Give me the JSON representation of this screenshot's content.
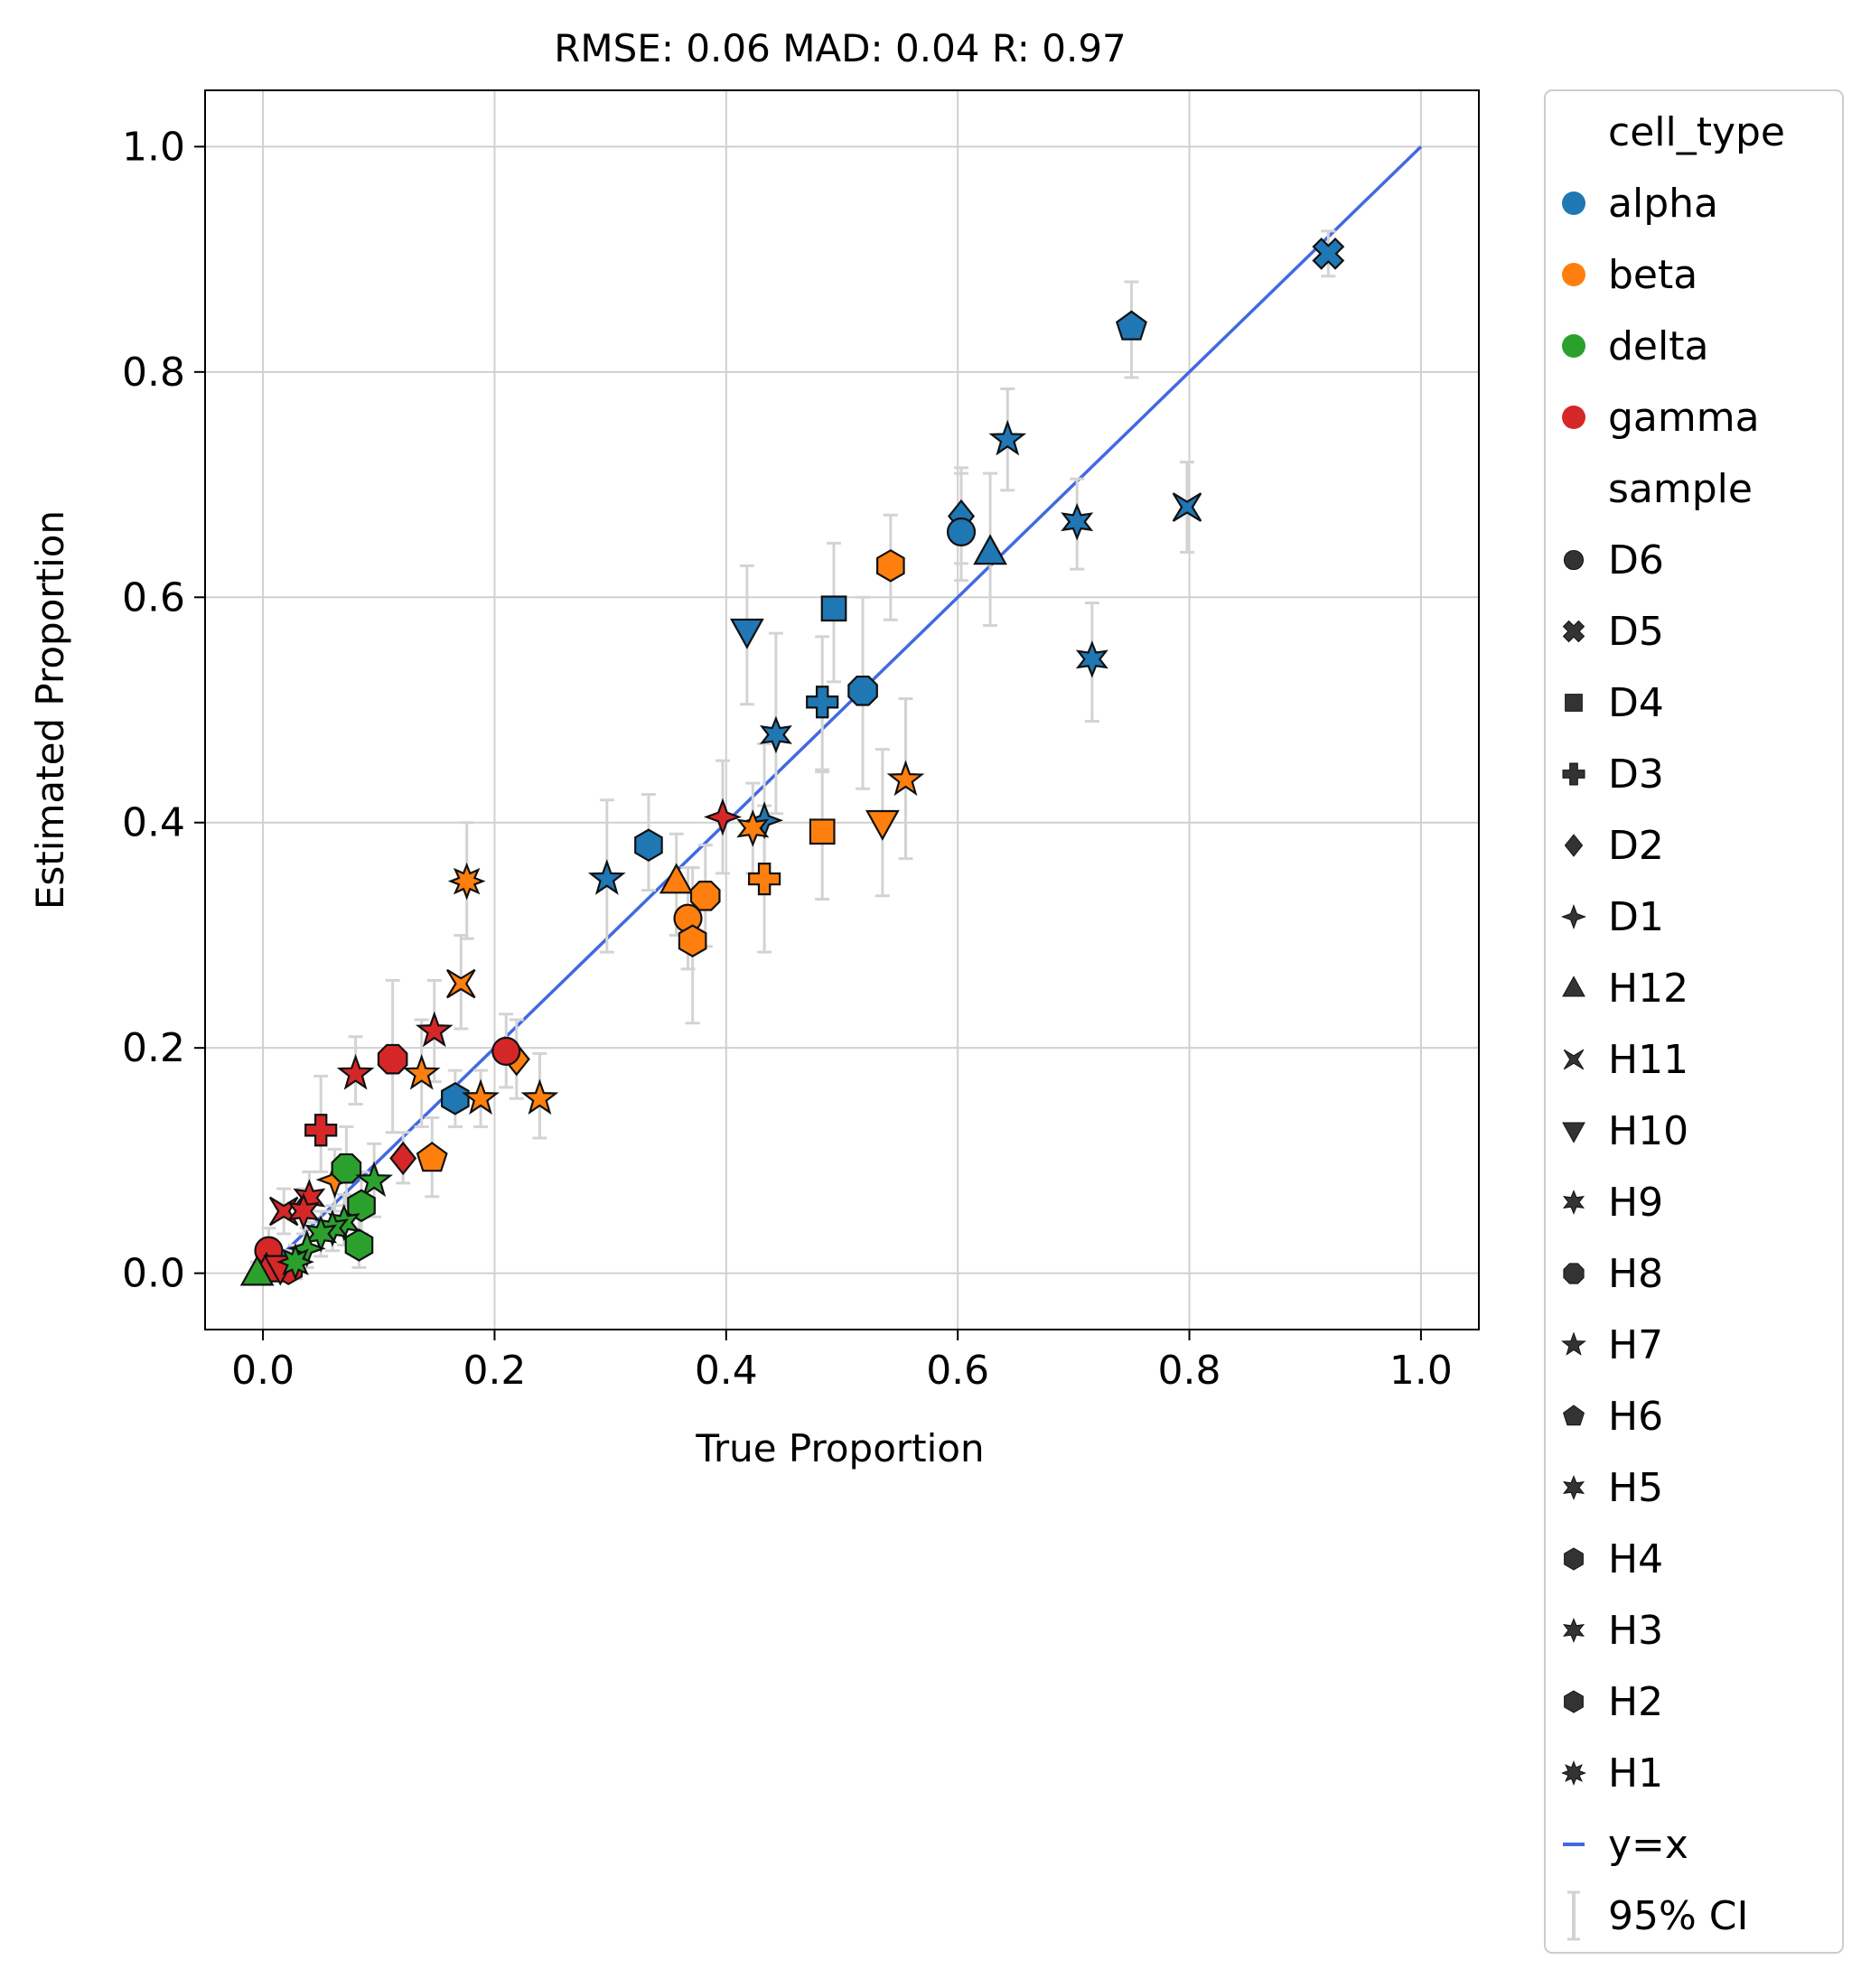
{
  "chart_data": {
    "type": "scatter",
    "title": "RMSE: 0.06 MAD: 0.04 R: 0.97",
    "xlabel": "True Proportion",
    "ylabel": "Estimated Proportion",
    "xlim": [
      -0.05,
      1.05
    ],
    "ylim": [
      -0.05,
      1.05
    ],
    "x_ticks": [
      "0.0",
      "0.2",
      "0.4",
      "0.6",
      "0.8",
      "1.0"
    ],
    "y_ticks": [
      "0.0",
      "0.2",
      "0.4",
      "0.6",
      "0.8",
      "1.0"
    ],
    "grid": true,
    "legend_position": "outside right",
    "reference_line": {
      "label": "y=x",
      "from": [
        0,
        0
      ],
      "to": [
        1,
        1
      ],
      "color": "#4169e1"
    },
    "legend": {
      "cell_type_title": "cell_type",
      "cell_types": [
        {
          "name": "alpha",
          "color": "#1f77b4"
        },
        {
          "name": "beta",
          "color": "#ff7f0e"
        },
        {
          "name": "delta",
          "color": "#2ca02c"
        },
        {
          "name": "gamma",
          "color": "#d62728"
        }
      ],
      "sample_title": "sample",
      "samples": [
        {
          "name": "D6",
          "marker": "circle"
        },
        {
          "name": "D5",
          "marker": "x"
        },
        {
          "name": "D4",
          "marker": "square"
        },
        {
          "name": "D3",
          "marker": "plus"
        },
        {
          "name": "D2",
          "marker": "diamond"
        },
        {
          "name": "D1",
          "marker": "star4"
        },
        {
          "name": "H12",
          "marker": "triangle-up"
        },
        {
          "name": "H11",
          "marker": "hourglass"
        },
        {
          "name": "H10",
          "marker": "triangle-down"
        },
        {
          "name": "H9",
          "marker": "star6"
        },
        {
          "name": "H8",
          "marker": "octagon"
        },
        {
          "name": "H7",
          "marker": "star5"
        },
        {
          "name": "H6",
          "marker": "pentagon"
        },
        {
          "name": "H5",
          "marker": "star6"
        },
        {
          "name": "H4",
          "marker": "hexagon"
        },
        {
          "name": "H3",
          "marker": "star6"
        },
        {
          "name": "H2",
          "marker": "hexagon"
        },
        {
          "name": "H1",
          "marker": "star8"
        }
      ],
      "line_label": "y=x",
      "ci_label": "95% CI",
      "ci_color": "#d3d3d3"
    },
    "points": [
      {
        "x": 0.92,
        "y": 0.905,
        "lo": 0.885,
        "hi": 0.925,
        "cell_type": "alpha",
        "sample": "D5"
      },
      {
        "x": 0.75,
        "y": 0.84,
        "lo": 0.795,
        "hi": 0.88,
        "cell_type": "alpha",
        "sample": "H6"
      },
      {
        "x": 0.643,
        "y": 0.74,
        "lo": 0.695,
        "hi": 0.785,
        "cell_type": "alpha",
        "sample": "H7"
      },
      {
        "x": 0.798,
        "y": 0.68,
        "lo": 0.64,
        "hi": 0.72,
        "cell_type": "alpha",
        "sample": "H11"
      },
      {
        "x": 0.703,
        "y": 0.667,
        "lo": 0.625,
        "hi": 0.705,
        "cell_type": "alpha",
        "sample": "H5"
      },
      {
        "x": 0.603,
        "y": 0.672,
        "lo": 0.63,
        "hi": 0.715,
        "cell_type": "alpha",
        "sample": "D2"
      },
      {
        "x": 0.603,
        "y": 0.658,
        "lo": 0.615,
        "hi": 0.71,
        "cell_type": "alpha",
        "sample": "D6"
      },
      {
        "x": 0.628,
        "y": 0.64,
        "lo": 0.575,
        "hi": 0.71,
        "cell_type": "alpha",
        "sample": "H12"
      },
      {
        "x": 0.716,
        "y": 0.545,
        "lo": 0.49,
        "hi": 0.595,
        "cell_type": "alpha",
        "sample": "H9"
      },
      {
        "x": 0.493,
        "y": 0.59,
        "lo": 0.525,
        "hi": 0.648,
        "cell_type": "alpha",
        "sample": "D4"
      },
      {
        "x": 0.418,
        "y": 0.57,
        "lo": 0.505,
        "hi": 0.628,
        "cell_type": "alpha",
        "sample": "H10"
      },
      {
        "x": 0.518,
        "y": 0.517,
        "lo": 0.43,
        "hi": 0.6,
        "cell_type": "alpha",
        "sample": "H8"
      },
      {
        "x": 0.483,
        "y": 0.507,
        "lo": 0.445,
        "hi": 0.565,
        "cell_type": "alpha",
        "sample": "D3"
      },
      {
        "x": 0.443,
        "y": 0.478,
        "lo": 0.408,
        "hi": 0.568,
        "cell_type": "alpha",
        "sample": "H3"
      },
      {
        "x": 0.433,
        "y": 0.402,
        "lo": 0.345,
        "hi": 0.47,
        "cell_type": "alpha",
        "sample": "D1"
      },
      {
        "x": 0.333,
        "y": 0.38,
        "lo": 0.34,
        "hi": 0.425,
        "cell_type": "alpha",
        "sample": "H2"
      },
      {
        "x": 0.297,
        "y": 0.35,
        "lo": 0.285,
        "hi": 0.42,
        "cell_type": "alpha",
        "sample": "H7"
      },
      {
        "x": 0.166,
        "y": 0.155,
        "lo": 0.13,
        "hi": 0.18,
        "cell_type": "alpha",
        "sample": "H4"
      },
      {
        "x": 0.542,
        "y": 0.628,
        "lo": 0.58,
        "hi": 0.673,
        "cell_type": "beta",
        "sample": "H4"
      },
      {
        "x": 0.555,
        "y": 0.438,
        "lo": 0.368,
        "hi": 0.51,
        "cell_type": "beta",
        "sample": "H7"
      },
      {
        "x": 0.535,
        "y": 0.4,
        "lo": 0.335,
        "hi": 0.465,
        "cell_type": "beta",
        "sample": "H10"
      },
      {
        "x": 0.423,
        "y": 0.395,
        "lo": 0.355,
        "hi": 0.435,
        "cell_type": "beta",
        "sample": "H9"
      },
      {
        "x": 0.483,
        "y": 0.392,
        "lo": 0.332,
        "hi": 0.447,
        "cell_type": "beta",
        "sample": "D4"
      },
      {
        "x": 0.433,
        "y": 0.35,
        "lo": 0.285,
        "hi": 0.415,
        "cell_type": "beta",
        "sample": "D3"
      },
      {
        "x": 0.357,
        "y": 0.348,
        "lo": 0.3,
        "hi": 0.39,
        "cell_type": "beta",
        "sample": "H12"
      },
      {
        "x": 0.382,
        "y": 0.335,
        "lo": 0.29,
        "hi": 0.38,
        "cell_type": "beta",
        "sample": "H8"
      },
      {
        "x": 0.367,
        "y": 0.315,
        "lo": 0.27,
        "hi": 0.36,
        "cell_type": "beta",
        "sample": "D6"
      },
      {
        "x": 0.371,
        "y": 0.295,
        "lo": 0.222,
        "hi": 0.36,
        "cell_type": "beta",
        "sample": "H2"
      },
      {
        "x": 0.176,
        "y": 0.348,
        "lo": 0.297,
        "hi": 0.4,
        "cell_type": "beta",
        "sample": "H1"
      },
      {
        "x": 0.171,
        "y": 0.257,
        "lo": 0.217,
        "hi": 0.3,
        "cell_type": "beta",
        "sample": "H11"
      },
      {
        "x": 0.137,
        "y": 0.177,
        "lo": 0.13,
        "hi": 0.225,
        "cell_type": "beta",
        "sample": "H7"
      },
      {
        "x": 0.188,
        "y": 0.155,
        "lo": 0.13,
        "hi": 0.18,
        "cell_type": "beta",
        "sample": "H7"
      },
      {
        "x": 0.239,
        "y": 0.155,
        "lo": 0.12,
        "hi": 0.195,
        "cell_type": "beta",
        "sample": "H7"
      },
      {
        "x": 0.219,
        "y": 0.19,
        "lo": 0.155,
        "hi": 0.225,
        "cell_type": "beta",
        "sample": "D2"
      },
      {
        "x": 0.146,
        "y": 0.102,
        "lo": 0.068,
        "hi": 0.138,
        "cell_type": "beta",
        "sample": "H6"
      },
      {
        "x": 0.062,
        "y": 0.083,
        "lo": 0.055,
        "hi": 0.11,
        "cell_type": "beta",
        "sample": "D1"
      },
      {
        "x": 0.397,
        "y": 0.405,
        "lo": 0.355,
        "hi": 0.455,
        "cell_type": "gamma",
        "sample": "D1"
      },
      {
        "x": 0.148,
        "y": 0.215,
        "lo": 0.17,
        "hi": 0.26,
        "cell_type": "gamma",
        "sample": "H7"
      },
      {
        "x": 0.112,
        "y": 0.19,
        "lo": 0.125,
        "hi": 0.26,
        "cell_type": "gamma",
        "sample": "H8"
      },
      {
        "x": 0.08,
        "y": 0.177,
        "lo": 0.15,
        "hi": 0.21,
        "cell_type": "gamma",
        "sample": "H7"
      },
      {
        "x": 0.21,
        "y": 0.197,
        "lo": 0.165,
        "hi": 0.23,
        "cell_type": "gamma",
        "sample": "D6"
      },
      {
        "x": 0.05,
        "y": 0.127,
        "lo": 0.09,
        "hi": 0.175,
        "cell_type": "gamma",
        "sample": "D3"
      },
      {
        "x": 0.121,
        "y": 0.102,
        "lo": 0.08,
        "hi": 0.125,
        "cell_type": "gamma",
        "sample": "D2"
      },
      {
        "x": 0.018,
        "y": 0.055,
        "lo": 0.035,
        "hi": 0.075,
        "cell_type": "gamma",
        "sample": "H11"
      },
      {
        "x": 0.04,
        "y": 0.067,
        "lo": 0.045,
        "hi": 0.09,
        "cell_type": "gamma",
        "sample": "H5"
      },
      {
        "x": 0.035,
        "y": 0.055,
        "lo": 0.035,
        "hi": 0.075,
        "cell_type": "gamma",
        "sample": "H9"
      },
      {
        "x": 0.005,
        "y": 0.02,
        "lo": 0.005,
        "hi": 0.04,
        "cell_type": "gamma",
        "sample": "D6"
      },
      {
        "x": 0.022,
        "y": 0.004,
        "lo": -0.005,
        "hi": 0.02,
        "cell_type": "gamma",
        "sample": "H4"
      },
      {
        "x": 0.003,
        "y": 0.003,
        "lo": -0.005,
        "hi": 0.015,
        "cell_type": "gamma",
        "sample": "H12"
      },
      {
        "x": 0.015,
        "y": 0.005,
        "lo": -0.005,
        "hi": 0.02,
        "cell_type": "gamma",
        "sample": "H10"
      },
      {
        "x": 0.072,
        "y": 0.093,
        "lo": 0.06,
        "hi": 0.13,
        "cell_type": "delta",
        "sample": "H8"
      },
      {
        "x": 0.096,
        "y": 0.082,
        "lo": 0.05,
        "hi": 0.115,
        "cell_type": "delta",
        "sample": "H7"
      },
      {
        "x": 0.085,
        "y": 0.06,
        "lo": 0.035,
        "hi": 0.09,
        "cell_type": "delta",
        "sample": "H4"
      },
      {
        "x": 0.083,
        "y": 0.025,
        "lo": 0.005,
        "hi": 0.05,
        "cell_type": "delta",
        "sample": "H2"
      },
      {
        "x": 0.07,
        "y": 0.045,
        "lo": 0.025,
        "hi": 0.07,
        "cell_type": "delta",
        "sample": "H5"
      },
      {
        "x": 0.06,
        "y": 0.04,
        "lo": 0.02,
        "hi": 0.06,
        "cell_type": "delta",
        "sample": "H9"
      },
      {
        "x": 0.05,
        "y": 0.035,
        "lo": 0.015,
        "hi": 0.055,
        "cell_type": "delta",
        "sample": "H3"
      },
      {
        "x": 0.038,
        "y": 0.022,
        "lo": 0.005,
        "hi": 0.04,
        "cell_type": "delta",
        "sample": "D1"
      },
      {
        "x": 0.028,
        "y": 0.01,
        "lo": -0.005,
        "hi": 0.025,
        "cell_type": "delta",
        "sample": "H1"
      },
      {
        "x": -0.005,
        "y": 0.0,
        "lo": -0.005,
        "hi": 0.01,
        "cell_type": "delta",
        "sample": "H12"
      }
    ]
  }
}
